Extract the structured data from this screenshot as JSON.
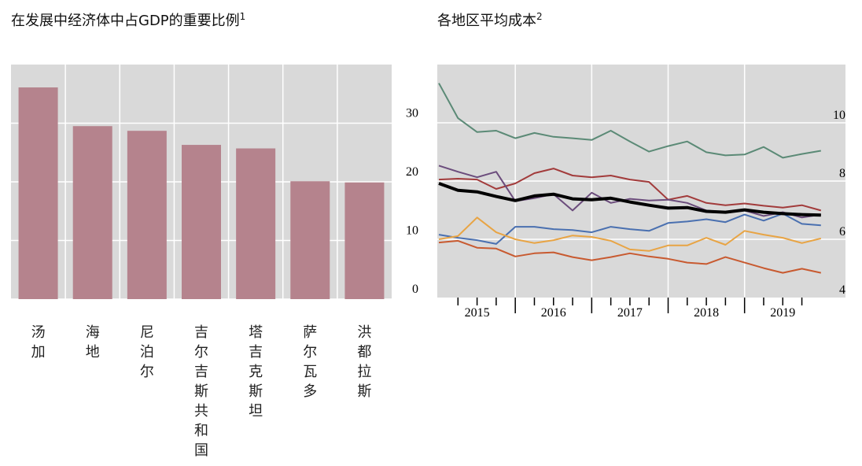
{
  "chart_data": [
    {
      "type": "bar",
      "title": "在发展中经济体中占GDP的重要比例",
      "title_note": "1",
      "categories": [
        "汤加",
        "海地",
        "尼泊尔",
        "吉尔吉斯共和国",
        "塔吉克斯坦",
        "萨尔瓦多",
        "洪都拉斯"
      ],
      "values": [
        36.1,
        29.5,
        28.7,
        26.3,
        25.7,
        20.1,
        19.9
      ],
      "color": "#b5838d",
      "ylim": [
        0,
        40
      ],
      "yticks": [
        0,
        10,
        20,
        30
      ],
      "grid": true
    },
    {
      "type": "line",
      "title": "各地区平均成本",
      "title_note": "2",
      "x": [
        2015,
        2015.25,
        2015.5,
        2015.75,
        2016,
        2016.25,
        2016.5,
        2016.75,
        2017,
        2017.25,
        2017.5,
        2017.75,
        2018,
        2018.25,
        2018.5,
        2018.75,
        2019,
        2019.25,
        2019.5,
        2019.75,
        2020
      ],
      "xlim": [
        2015,
        2020.3
      ],
      "xticks": [
        {
          "value": 2015.5,
          "label": "2015"
        },
        {
          "value": 2016.5,
          "label": "2016"
        },
        {
          "value": 2017.5,
          "label": "2017"
        },
        {
          "value": 2018.5,
          "label": "2018"
        },
        {
          "value": 2019.5,
          "label": "2019"
        }
      ],
      "ylim": [
        4,
        12
      ],
      "yticks": [
        4,
        6,
        8,
        10
      ],
      "grid": true,
      "series": [
        {
          "color": "#5b8a76",
          "values": [
            11.36,
            10.16,
            9.68,
            9.73,
            9.47,
            9.65,
            9.52,
            9.47,
            9.41,
            9.73,
            9.36,
            9.01,
            9.2,
            9.36,
            8.99,
            8.88,
            8.91,
            9.17,
            8.8,
            8.93,
            9.04
          ]
        },
        {
          "color": "#a23b3b",
          "values": [
            8.05,
            8.08,
            8.05,
            7.73,
            7.92,
            8.27,
            8.43,
            8.19,
            8.13,
            8.19,
            8.05,
            7.97,
            7.36,
            7.49,
            7.25,
            7.17,
            7.23,
            7.15,
            7.09,
            7.17,
            6.99
          ]
        },
        {
          "color": "#6b4c7c",
          "values": [
            8.53,
            8.32,
            8.13,
            8.32,
            7.31,
            7.41,
            7.55,
            6.99,
            7.6,
            7.25,
            7.39,
            7.33,
            7.36,
            7.25,
            6.99,
            6.93,
            6.99,
            6.8,
            6.93,
            6.75,
            6.85
          ]
        },
        {
          "color": "#4a70b0",
          "values": [
            6.16,
            6.05,
            5.97,
            5.84,
            6.43,
            6.43,
            6.35,
            6.32,
            6.24,
            6.43,
            6.35,
            6.29,
            6.56,
            6.61,
            6.69,
            6.59,
            6.85,
            6.64,
            6.88,
            6.53,
            6.48
          ]
        },
        {
          "color": "#e8a444",
          "values": [
            6.0,
            6.11,
            6.75,
            6.24,
            6.0,
            5.87,
            5.97,
            6.13,
            6.08,
            5.95,
            5.65,
            5.6,
            5.79,
            5.79,
            6.05,
            5.81,
            6.29,
            6.16,
            6.05,
            5.87,
            6.03
          ]
        },
        {
          "color": "#c85a30",
          "values": [
            5.89,
            5.95,
            5.71,
            5.68,
            5.41,
            5.52,
            5.55,
            5.39,
            5.28,
            5.39,
            5.52,
            5.41,
            5.33,
            5.2,
            5.15,
            5.39,
            5.2,
            5.01,
            4.85,
            4.99,
            4.85
          ]
        },
        {
          "color": "#000000",
          "width": 4,
          "values": [
            7.92,
            7.68,
            7.63,
            7.47,
            7.33,
            7.49,
            7.55,
            7.39,
            7.36,
            7.41,
            7.28,
            7.17,
            7.07,
            7.09,
            6.96,
            6.93,
            7.01,
            6.93,
            6.88,
            6.85,
            6.83
          ]
        }
      ]
    }
  ]
}
